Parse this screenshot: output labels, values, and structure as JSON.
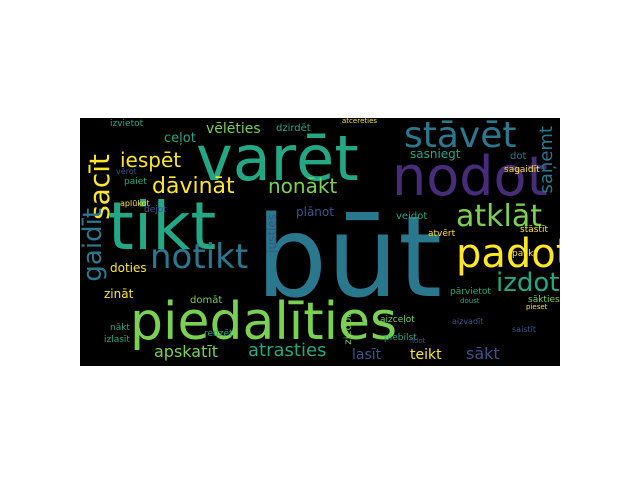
{
  "palette": {
    "background": "#000000",
    "page": "#ffffff",
    "purple": "#472c7a",
    "blue": "#2a788e",
    "teal": "#22a884",
    "green": "#7ad151",
    "yellow": "#fde725",
    "dark": "#3b528b"
  },
  "words": {
    "but": "būt",
    "varet": "varēt",
    "tikt": "tikt",
    "nodot": "nodot",
    "piedalities": "piedalīties",
    "padot": "padot",
    "stavet": "stāvēt",
    "atklat": "atklāt",
    "notikt": "notikt",
    "sacit": "sacīt",
    "gaidit": "gaidīt",
    "davinat": "dāvināt",
    "nonakt": "nonākt",
    "izdot": "izdot",
    "iespet": "iespēt",
    "veleties": "vēlēties",
    "celot": "ceļot",
    "atrasties": "atrasties",
    "apskatit": "apskatīt",
    "sakt": "sākt",
    "teikt": "teikt",
    "lasit": "lasīt",
    "sanemt": "saņemt",
    "sasniegt": "sasniegt",
    "planot": "plānot",
    "dzirdet": "dzirdēt",
    "doties": "doties",
    "zinat": "zināt",
    "domat": "domāt",
    "izvietot": "izvietot",
    "redzet": "redzēt",
    "veidot": "veidot",
    "stastit": "stāstīt",
    "dot": "dot",
    "atvert": "atvērt",
    "parvietot": "pārvietot",
    "saktes": "sākties",
    "sagaidit": "sagaidīt",
    "palikt": "palikt",
    "paiet": "paiet",
    "aplukot": "aplūkot",
    "verot": "vērot",
    "dejot": "dejot",
    "nakt": "nākt",
    "izlasit": "izlasīt",
    "justies": "justies",
    "ziedot": "ziedot",
    "piebilst": "piebilst",
    "aizcejot": "aizceļot",
    "skersot": "šķērsot",
    "palidzet": "palīdzēt",
    "izmantot": "izmantot",
    "atcerēties": "atcerēties",
    "pieset": "pieset",
    "doust": "doust",
    "saistit": "saistīt",
    "aizvadit": "aizvadīt",
    "lidot": "lidot"
  }
}
